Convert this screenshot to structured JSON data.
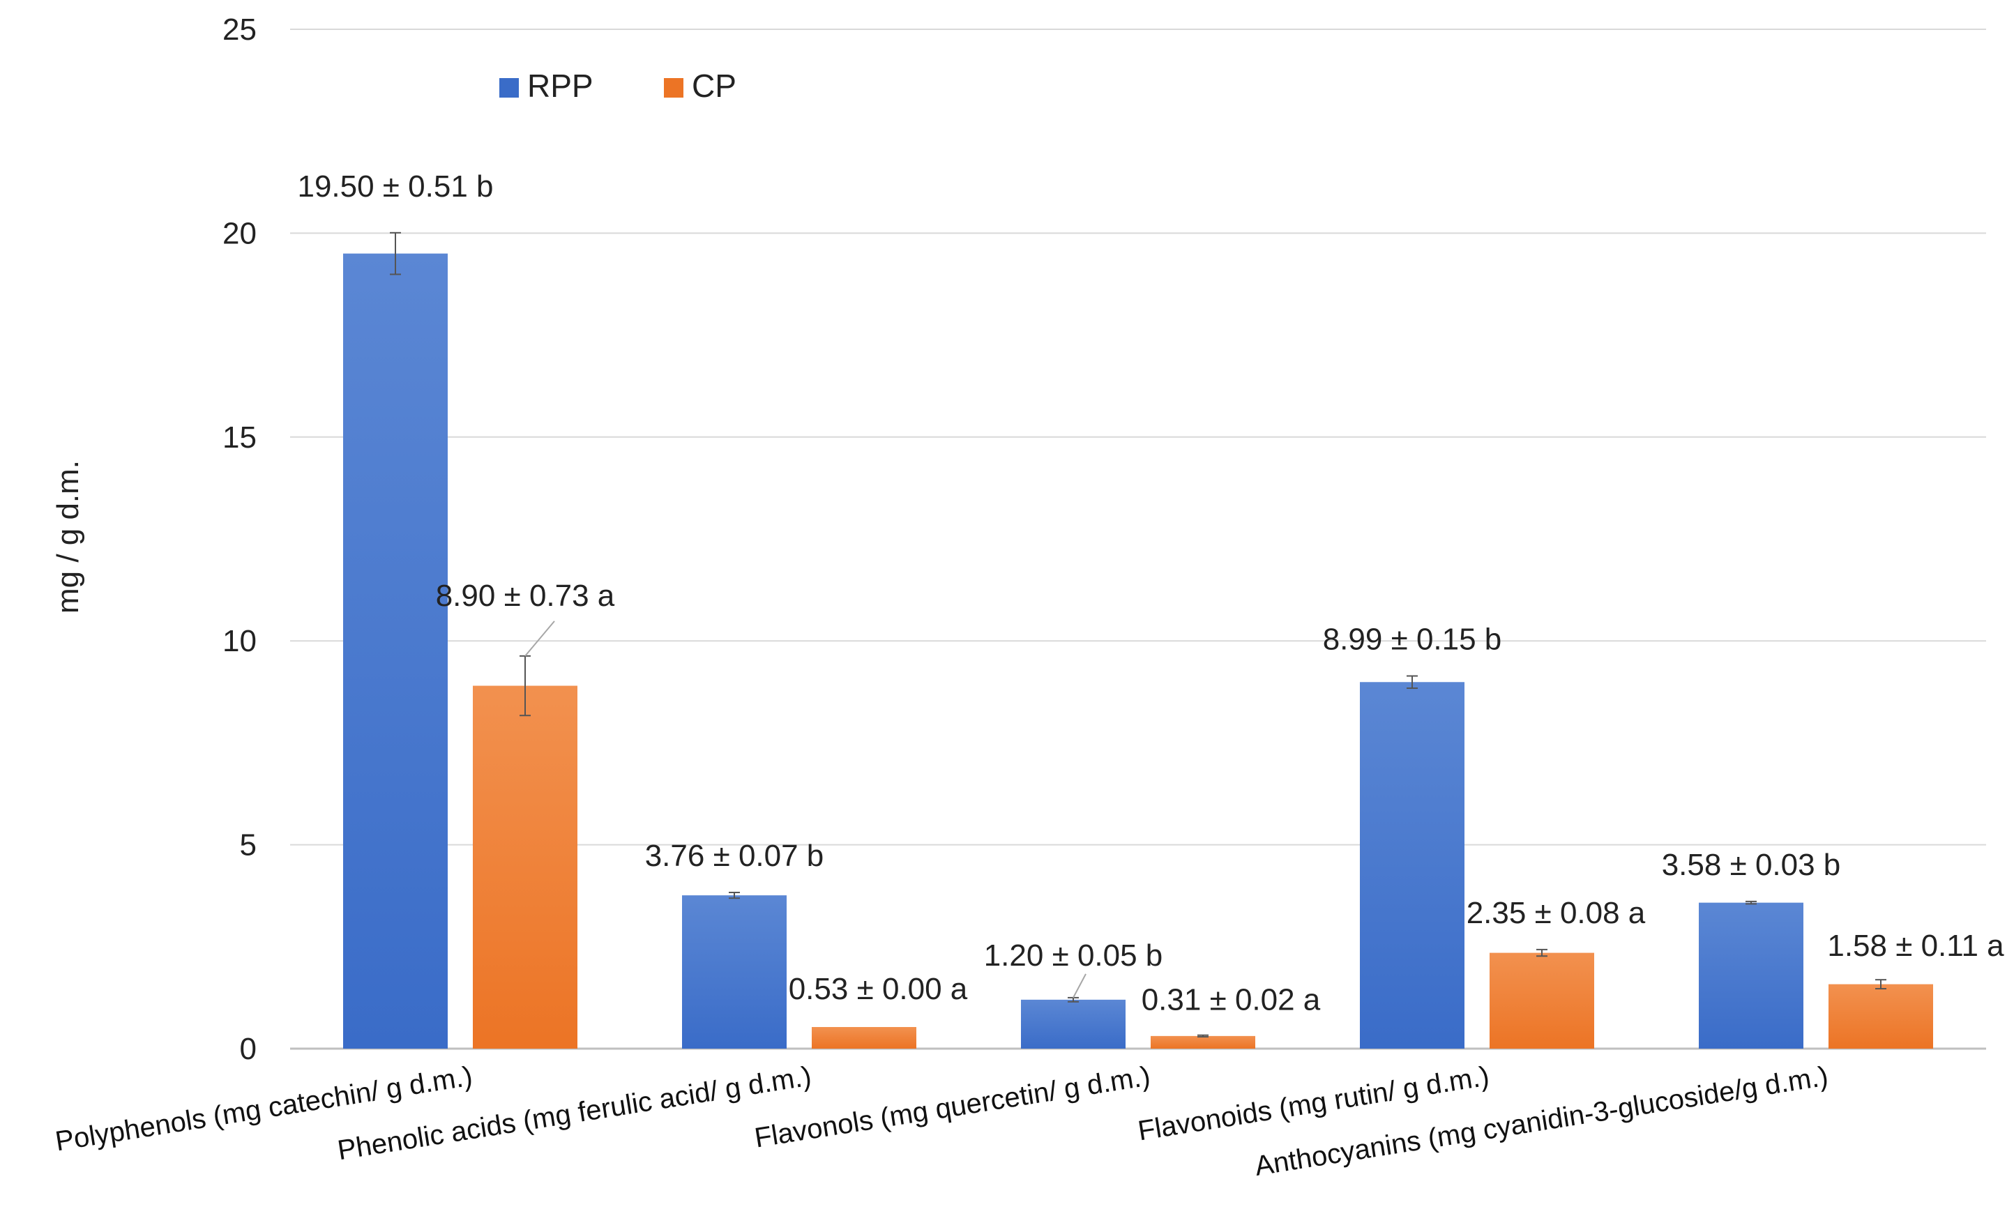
{
  "chart_data": {
    "type": "bar",
    "title": "",
    "xlabel": "",
    "ylabel": "mg / g d.m.",
    "ylim": [
      0,
      25
    ],
    "yticks": [
      0,
      5,
      10,
      15,
      20,
      25
    ],
    "grid": true,
    "legend_position": "top-left",
    "categories": [
      "Polyphenols (mg catechin/ g d.m.)",
      "Phenolic acids (mg ferulic acid/ g d.m.)",
      "Flavonols (mg quercetin/ g d.m.)",
      "Flavonoids (mg rutin/ g d.m.)",
      "Anthocyanins (mg cyanidin-3-glucoside/g d.m.)"
    ],
    "series": [
      {
        "name": "RPP",
        "color": "#3a6cc8",
        "color_light": "#5b87d4",
        "values": [
          19.5,
          3.76,
          1.2,
          8.99,
          3.58
        ],
        "errors": [
          0.51,
          0.07,
          0.05,
          0.15,
          0.03
        ],
        "labels": [
          "19.50 ± 0.51 b",
          "3.76 ± 0.07 b",
          "1.20 ± 0.05 b",
          "8.99 ± 0.15 b",
          "3.58 ± 0.03 b"
        ]
      },
      {
        "name": "CP",
        "color": "#ec7425",
        "color_light": "#f2914f",
        "values": [
          8.9,
          0.53,
          0.31,
          2.35,
          1.58
        ],
        "errors": [
          0.73,
          0.0,
          0.02,
          0.08,
          0.11
        ],
        "labels": [
          "8.90 ± 0.73 a",
          "0.53 ± 0.00 a",
          "0.31 ± 0.02 a",
          "2.35 ± 0.08 a",
          "1.58 ± 0.11 a"
        ]
      }
    ]
  }
}
